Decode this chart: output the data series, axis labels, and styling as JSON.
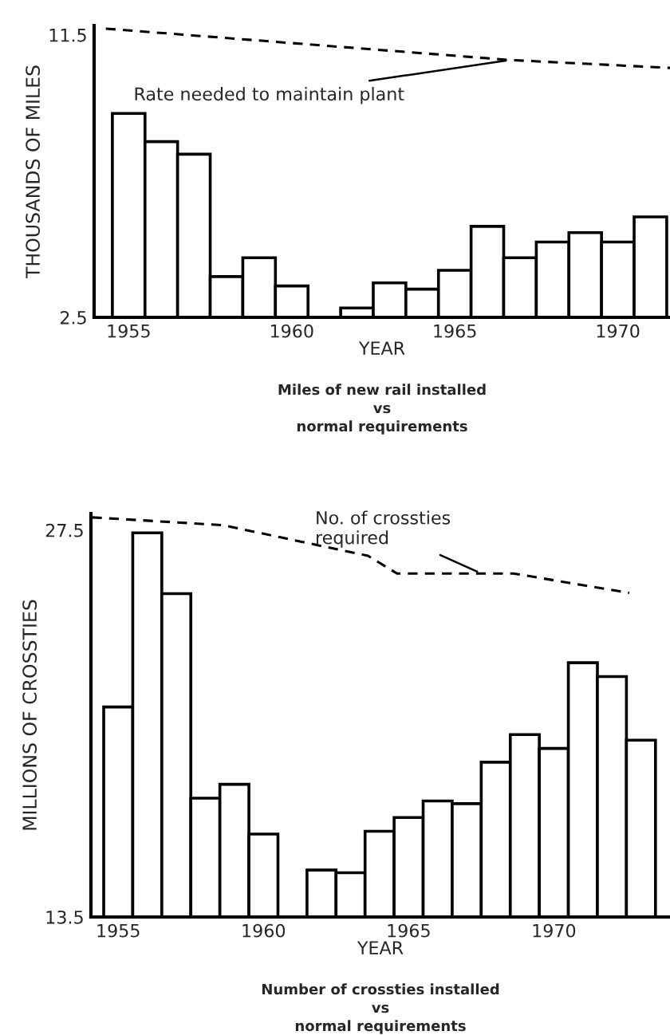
{
  "chart_data": [
    {
      "type": "bar",
      "xlabel": "YEAR",
      "ylabel": "THOUSANDS OF MILES",
      "xlim": [
        1953.94,
        1971.6
      ],
      "ylim": [
        2.5,
        11.8
      ],
      "xticks": [
        1955,
        1960,
        1965,
        1970
      ],
      "yticks": [
        2.5,
        11.5
      ],
      "grid": false,
      "legend": false,
      "series": [
        {
          "color": "#ffffff",
          "x": [
            1955,
            1956,
            1957,
            1958,
            1959,
            1960,
            1961,
            1962,
            1963,
            1964,
            1965,
            1966,
            1967,
            1968,
            1969,
            1970,
            1971
          ],
          "values": [
            9.0,
            8.1,
            7.7,
            3.8,
            4.4,
            3.5,
            null,
            2.8,
            3.6,
            3.4,
            4.0,
            5.4,
            4.4,
            4.9,
            5.2,
            4.9,
            5.7
          ]
        },
        {
          "type": "line",
          "color": "#000000",
          "line_style": "dashed",
          "x": [
            1954.3,
            1966.7,
            1971.6
          ],
          "values": [
            11.7,
            10.7,
            10.45
          ]
        }
      ],
      "annotations": [
        {
          "text": "Rate needed to maintain plant",
          "x": 1966.7,
          "y": 10.7
        },
        "Miles of new rail installed\nvs\nnormal requirements"
      ]
    },
    {
      "type": "bar",
      "xlabel": "YEAR",
      "ylabel": "MILLIONS OF CROSSTIES",
      "xlim": [
        1954.06,
        1974.0
      ],
      "ylim": [
        13.5,
        28.1
      ],
      "xticks": [
        1955,
        1960,
        1965,
        1970
      ],
      "yticks": [
        13.5,
        27.5
      ],
      "grid": false,
      "legend": false,
      "series": [
        {
          "color": "#ffffff",
          "x": [
            1955,
            1956,
            1957,
            1958,
            1959,
            1960,
            1961,
            1962,
            1963,
            1964,
            1965,
            1966,
            1967,
            1968,
            1969,
            1970,
            1971,
            1972,
            1973
          ],
          "values": [
            21.1,
            27.4,
            25.2,
            17.8,
            18.3,
            16.5,
            null,
            15.2,
            15.1,
            16.6,
            17.1,
            17.7,
            17.6,
            19.1,
            20.1,
            19.6,
            22.7,
            22.2,
            19.9
          ]
        },
        {
          "type": "line",
          "color": "#000000",
          "line_style": "dashed",
          "x": [
            1954.1,
            1958.6,
            1963.6,
            1964.6,
            1968.6,
            1972.6
          ],
          "values": [
            27.96,
            27.68,
            26.57,
            25.93,
            25.93,
            25.23
          ]
        }
      ],
      "annotations": [
        {
          "text": "No. of crossties\nrequired",
          "x": 1967.5,
          "y": 25.93
        },
        "Number of crossties installed\nvs\nnormal requirements"
      ]
    }
  ]
}
